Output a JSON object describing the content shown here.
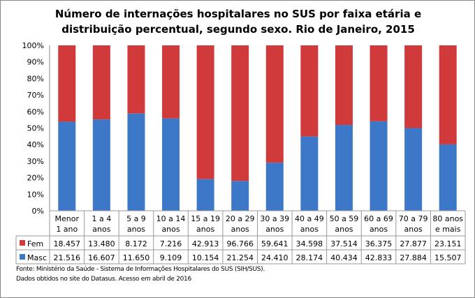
{
  "chart_data": {
    "type": "bar",
    "stacked": "percent",
    "title_line1": "Número de internações hospitalares no SUS por faixa etária e",
    "title_line2": "distribuição percentual, segundo sexo. Rio de Janeiro, 2015",
    "categories": [
      [
        "Menor",
        "1 ano"
      ],
      [
        "1 a 4",
        "anos"
      ],
      [
        "5 a 9",
        "anos"
      ],
      [
        "10 a 14",
        "anos"
      ],
      [
        "15 a 19",
        "anos"
      ],
      [
        "20 a 29",
        "anos"
      ],
      [
        "30 a 39",
        "anos"
      ],
      [
        "40 a 49",
        "anos"
      ],
      [
        "50 a 59",
        "anos"
      ],
      [
        "60 a 69",
        "anos"
      ],
      [
        "70 a 79",
        "anos"
      ],
      [
        "80 anos",
        "e mais"
      ]
    ],
    "series": [
      {
        "name": "Fem",
        "color": "#d03a3a",
        "values": [
          18457,
          13480,
          8172,
          7216,
          42913,
          96766,
          59641,
          34598,
          37514,
          36375,
          27877,
          23151
        ],
        "labels": [
          "18.457",
          "13.480",
          "8.172",
          "7.216",
          "42.913",
          "96.766",
          "59.641",
          "34.598",
          "37.514",
          "36.375",
          "27.877",
          "23.151"
        ]
      },
      {
        "name": "Masc",
        "color": "#3d78c8",
        "values": [
          21516,
          16607,
          11650,
          9109,
          10154,
          21254,
          24410,
          28174,
          40434,
          42833,
          27884,
          15507
        ],
        "labels": [
          "21.516",
          "16.607",
          "11.650",
          "9.109",
          "10.154",
          "21.254",
          "24.410",
          "28.174",
          "40.434",
          "42.833",
          "27.884",
          "15.507"
        ]
      }
    ],
    "yticks": [
      "0%",
      "10%",
      "20%",
      "30%",
      "40%",
      "50%",
      "60%",
      "70%",
      "80%",
      "90%",
      "100%"
    ],
    "ylim": [
      0,
      100
    ],
    "grid": false,
    "legend": "data-table"
  },
  "source_line1": "Fonte: Ministério da Saúde - Sistema de Informações Hospitalares do SUS (SIH/SUS).",
  "source_line2": "Dados obtidos no site do Datasus. Acesso em abril de 2016"
}
